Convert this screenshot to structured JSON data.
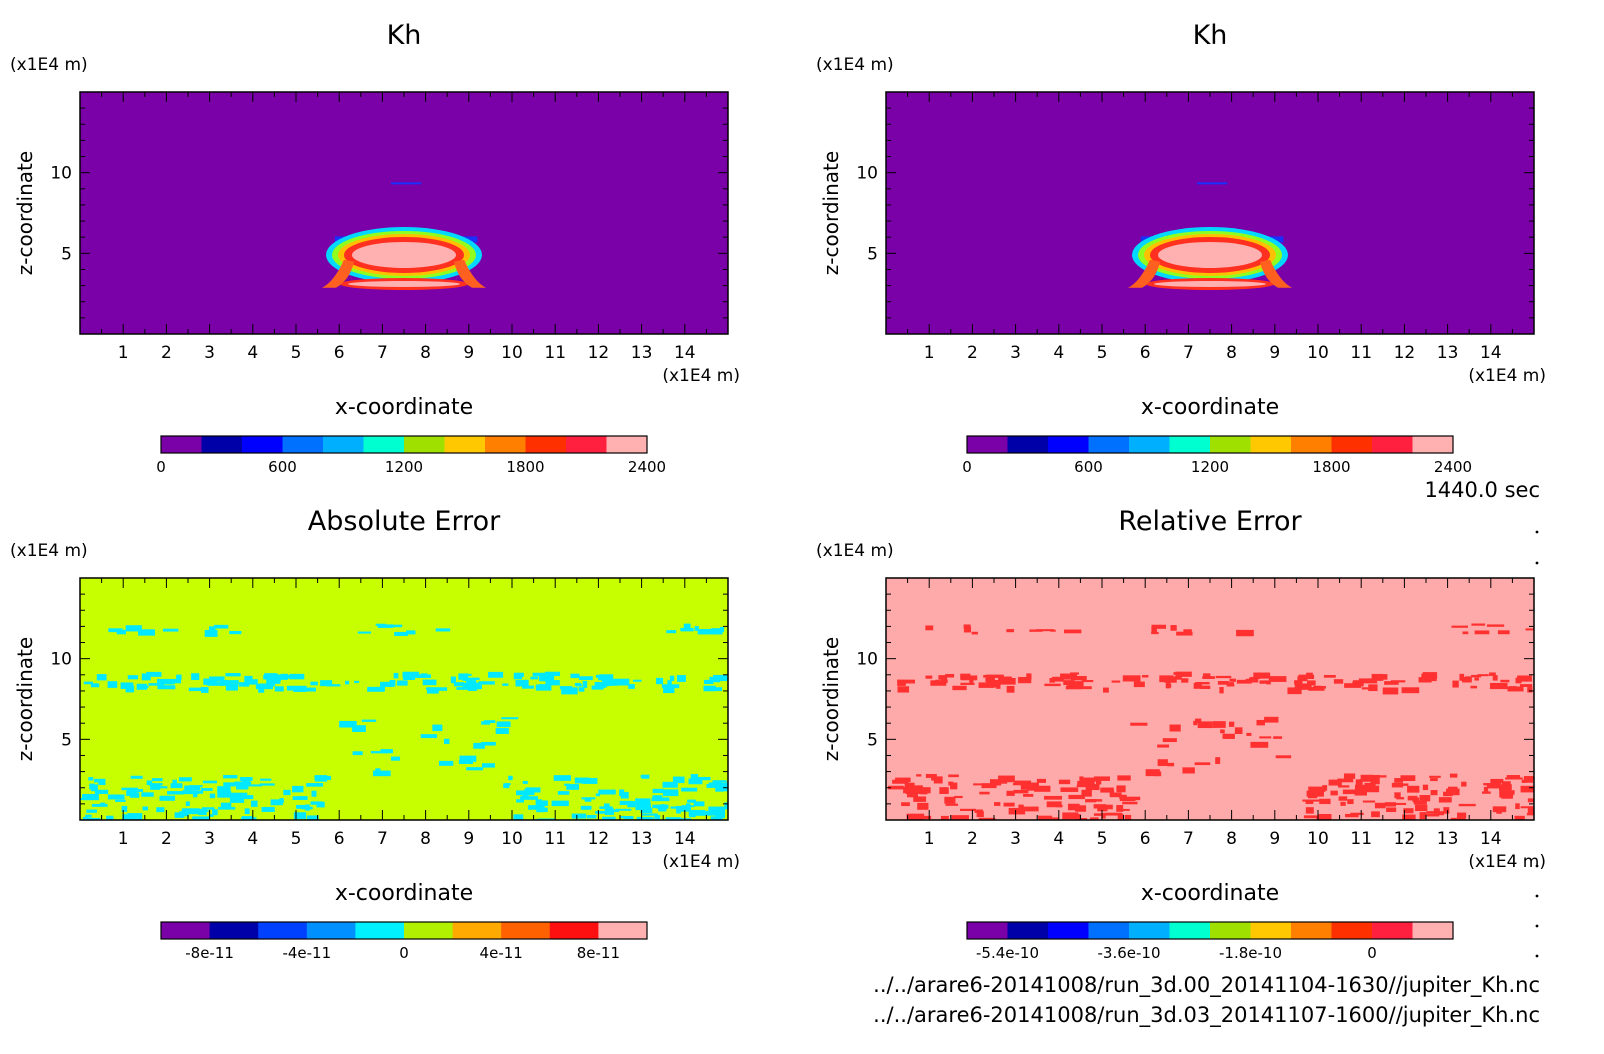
{
  "footer": {
    "time": "1440.0 sec",
    "file1": "../../arare6-20141008/run_3d.00_20141104-1630//jupiter_Kh.nc",
    "file2": "../../arare6-20141008/run_3d.03_20141107-1600//jupiter_Kh.nc"
  },
  "chart_data": [
    {
      "type": "heatmap",
      "title": "Kh",
      "xlabel": "x-coordinate",
      "ylabel": "z-coordinate",
      "xunit": "(x1E4 m)",
      "yunit": "(x1E4 m)",
      "xlim": [
        0,
        15
      ],
      "ylim": [
        0,
        15
      ],
      "xticks": [
        "1",
        "2",
        "3",
        "4",
        "5",
        "6",
        "7",
        "8",
        "9",
        "10",
        "11",
        "12",
        "13",
        "14"
      ],
      "yticks": [
        "5",
        "10"
      ],
      "background_color": "#7a00a8",
      "features": "thermal bubble centered near x=7.5, z=3-6 reaching values up to 2400",
      "colorbar": {
        "colors": [
          "#7a00a8",
          "#0000a8",
          "#0000ff",
          "#0070ff",
          "#00b0ff",
          "#00ffd0",
          "#a0e000",
          "#ffc800",
          "#ff8000",
          "#ff3000",
          "#ff2040",
          "#ffb0b0"
        ],
        "tick_labels": [
          "0",
          "600",
          "1200",
          "1800",
          "2400"
        ],
        "min": 0,
        "max": 2400
      }
    },
    {
      "type": "heatmap",
      "title": "Kh",
      "xlabel": "x-coordinate",
      "ylabel": "z-coordinate",
      "xunit": "(x1E4 m)",
      "yunit": "(x1E4 m)",
      "xlim": [
        0,
        15
      ],
      "ylim": [
        0,
        15
      ],
      "xticks": [
        "1",
        "2",
        "3",
        "4",
        "5",
        "6",
        "7",
        "8",
        "9",
        "10",
        "11",
        "12",
        "13",
        "14"
      ],
      "yticks": [
        "5",
        "10"
      ],
      "background_color": "#7a00a8",
      "features": "thermal bubble centered near x=7.5, z=3-6 reaching values up to 2400",
      "colorbar": {
        "colors": [
          "#7a00a8",
          "#0000a8",
          "#0000ff",
          "#0070ff",
          "#00b0ff",
          "#00ffd0",
          "#a0e000",
          "#ffc800",
          "#ff8000",
          "#ff3000",
          "#ff2040",
          "#ffb0b0"
        ],
        "tick_labels": [
          "0",
          "600",
          "1200",
          "1800",
          "2400"
        ],
        "min": 0,
        "max": 2400
      }
    },
    {
      "type": "heatmap",
      "title": "Absolute Error",
      "xlabel": "x-coordinate",
      "ylabel": "z-coordinate",
      "xunit": "(x1E4 m)",
      "yunit": "(x1E4 m)",
      "xlim": [
        0,
        15
      ],
      "ylim": [
        0,
        15
      ],
      "xticks": [
        "1",
        "2",
        "3",
        "4",
        "5",
        "6",
        "7",
        "8",
        "9",
        "10",
        "11",
        "12",
        "13",
        "14"
      ],
      "yticks": [
        "5",
        "10"
      ],
      "background_color": "#c8ff00",
      "patch_color": "#00e8ff",
      "colorbar": {
        "colors": [
          "#7a00a8",
          "#0000a8",
          "#0040ff",
          "#0090ff",
          "#00f0ff",
          "#b0f000",
          "#ffaa00",
          "#ff6000",
          "#ff1010",
          "#ffb0b0"
        ],
        "tick_labels": [
          "-8e-11",
          "-4e-11",
          "0",
          "4e-11",
          "8e-11"
        ]
      }
    },
    {
      "type": "heatmap",
      "title": "Relative Error",
      "xlabel": "x-coordinate",
      "ylabel": "z-coordinate",
      "xunit": "(x1E4 m)",
      "yunit": "(x1E4 m)",
      "xlim": [
        0,
        15
      ],
      "ylim": [
        0,
        15
      ],
      "xticks": [
        "1",
        "2",
        "3",
        "4",
        "5",
        "6",
        "7",
        "8",
        "9",
        "10",
        "11",
        "12",
        "13",
        "14"
      ],
      "yticks": [
        "5",
        "10"
      ],
      "background_color": "#ffaaaa",
      "patch_color": "#ff3030",
      "colorbar": {
        "colors": [
          "#7a00a8",
          "#0000a8",
          "#0000ff",
          "#0070ff",
          "#00b0ff",
          "#00ffd0",
          "#a0e000",
          "#ffc800",
          "#ff8000",
          "#ff3000",
          "#ff2040",
          "#ffb0b0"
        ],
        "tick_labels": [
          "-5.4e-10",
          "-3.6e-10",
          "-1.8e-10",
          "0"
        ]
      }
    }
  ]
}
